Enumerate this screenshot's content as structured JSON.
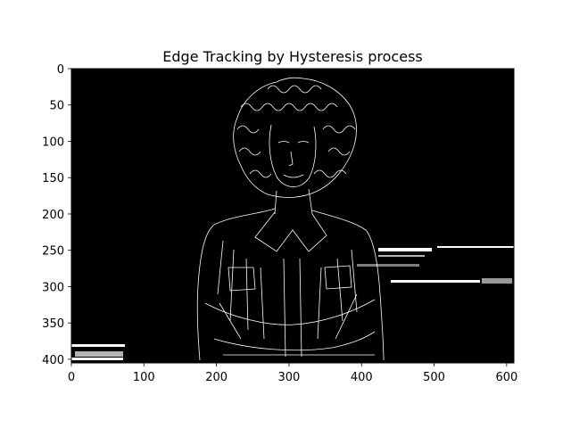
{
  "figure": {
    "title": "Edge Tracking by Hysteresis process"
  },
  "image": {
    "description_type": "edge-detection output (binary edges on black)",
    "background_color": "#000000",
    "edge_color": "#ffffff"
  },
  "axes": {
    "x_ticks": [
      "0",
      "100",
      "200",
      "300",
      "400",
      "500",
      "600"
    ],
    "y_ticks": [
      "0",
      "50",
      "100",
      "150",
      "200",
      "250",
      "300",
      "350",
      "400"
    ],
    "xlim": [
      0,
      610
    ],
    "ylim": [
      405,
      0
    ]
  }
}
